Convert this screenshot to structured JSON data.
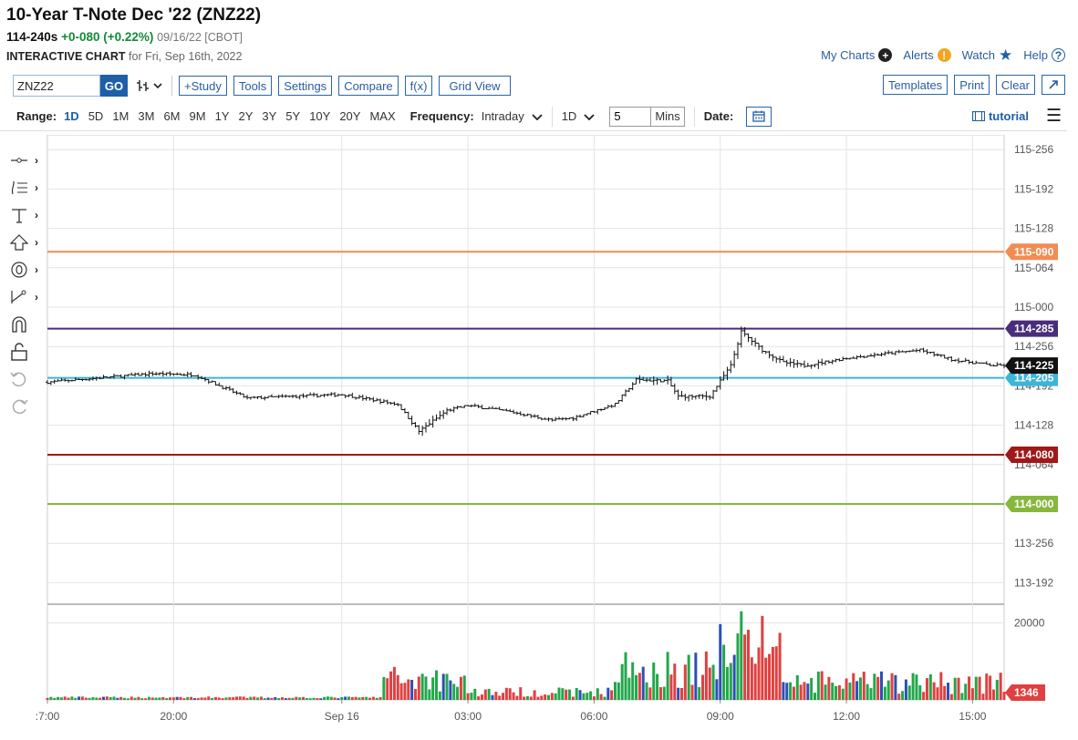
{
  "header": {
    "title": "10-Year T-Note Dec '22 (ZNZ22)",
    "price": "114-240s",
    "change": "+0-080 (+0.22%)",
    "date_exchange": "09/16/22 [CBOT]",
    "chart_label": "INTERACTIVE CHART",
    "chart_for": "for Fri, Sep 16th, 2022"
  },
  "top_links": {
    "my_charts": "My Charts",
    "alerts": "Alerts",
    "watch": "Watch",
    "help": "Help"
  },
  "toolbar": {
    "symbol_value": "ZNZ22",
    "go_label": "GO",
    "study_label": "+Study",
    "tools_label": "Tools",
    "settings_label": "Settings",
    "compare_label": "Compare",
    "fx_label": "f(x)",
    "grid_view_label": "Grid View",
    "templates_label": "Templates",
    "print_label": "Print",
    "clear_label": "Clear"
  },
  "rangebar": {
    "range_label": "Range:",
    "ranges": [
      "1D",
      "5D",
      "1M",
      "3M",
      "6M",
      "9M",
      "1Y",
      "2Y",
      "3Y",
      "5Y",
      "10Y",
      "20Y",
      "MAX"
    ],
    "active_range": "1D",
    "frequency_label": "Frequency:",
    "frequency_value": "Intraday",
    "period_value": "1D",
    "mins_value": "5",
    "mins_label": "Mins",
    "date_label": "Date:",
    "tutorial_label": "tutorial"
  },
  "chart_data": {
    "type": "ohlc",
    "y_ticks": [
      "115-256",
      "115-192",
      "115-128",
      "115-064",
      "115-000",
      "114-256",
      "114-192",
      "114-128",
      "114-064",
      "113-256",
      "113-192"
    ],
    "x_ticks": [
      ":7:00",
      "20:00",
      "Sep 16",
      "03:00",
      "06:00",
      "09:00",
      "12:00",
      "15:00"
    ],
    "ylim": [
      "113-160",
      "115-280"
    ],
    "price_series_anchors": [
      [
        "17:00",
        "114-198"
      ],
      [
        "19:30",
        "114-212"
      ],
      [
        "20:30",
        "114-210"
      ],
      [
        "21:45",
        "114-172"
      ],
      [
        "Sep 16 00:00",
        "114-178"
      ],
      [
        "01:20",
        "114-162"
      ],
      [
        "01:50",
        "114-118"
      ],
      [
        "02:30",
        "114-152"
      ],
      [
        "03:00",
        "114-160"
      ],
      [
        "04:00",
        "114-150"
      ],
      [
        "05:00",
        "114-136"
      ],
      [
        "05:30",
        "114-140"
      ],
      [
        "06:30",
        "114-162"
      ],
      [
        "07:00",
        "114-202"
      ],
      [
        "07:45",
        "114-200"
      ],
      [
        "08:00",
        "114-175"
      ],
      [
        "08:45",
        "114-175"
      ],
      [
        "09:15",
        "114-225"
      ],
      [
        "09:30",
        "114-280"
      ],
      [
        "10:00",
        "114-250"
      ],
      [
        "10:30",
        "114-230"
      ],
      [
        "11:00",
        "114-225"
      ],
      [
        "12:00",
        "114-237"
      ],
      [
        "13:00",
        "114-245"
      ],
      [
        "13:45",
        "114-250"
      ],
      [
        "14:30",
        "114-235"
      ],
      [
        "15:30",
        "114-225"
      ]
    ],
    "horizontal_lines": [
      {
        "label": "115-090",
        "color": "#f28c52"
      },
      {
        "label": "114-285",
        "color": "#4a2d7a"
      },
      {
        "label": "114-205",
        "color": "#3cb5d8"
      },
      {
        "label": "114-080",
        "color": "#a01818"
      },
      {
        "label": "114-000",
        "color": "#86b83e"
      }
    ],
    "last_price_label": "114-225",
    "volume": {
      "y_tick": "20000",
      "last_label": "1346",
      "peak_value": 23000,
      "colors": {
        "up": "#22a74a",
        "down": "#e04040",
        "neutral": "#2c4fb8"
      }
    }
  }
}
